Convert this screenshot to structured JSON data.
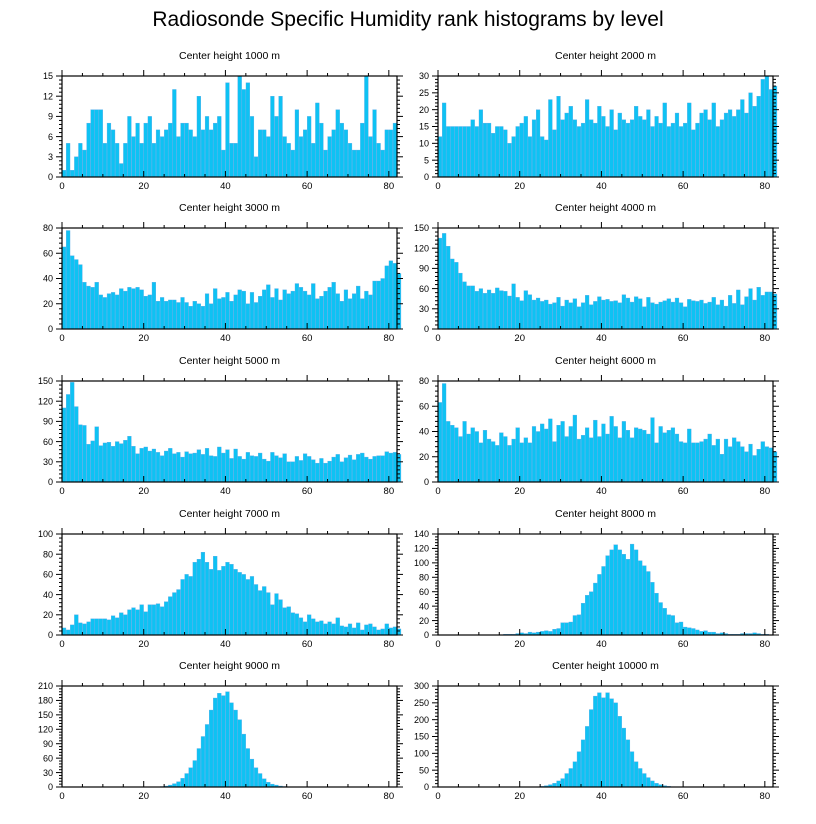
{
  "title": "Radiosonde Specific Humidity rank histograms by level",
  "colors": {
    "bar": "#0ec2f3",
    "bar_edge": "#5aa6e6",
    "axis": "#000000"
  },
  "chart_data": [
    {
      "type": "bar",
      "title": "Center height 1000 m",
      "xlim": [
        0,
        82
      ],
      "ylim": [
        0,
        15
      ],
      "xticks": [
        0,
        20,
        40,
        60,
        80
      ],
      "yticks": [
        0,
        3,
        6,
        9,
        12,
        15
      ],
      "values": [
        1,
        5,
        1,
        3,
        5,
        4,
        8,
        10,
        10,
        10,
        5,
        8,
        7,
        5,
        2,
        5,
        9,
        6,
        8,
        5,
        8,
        9,
        5,
        7,
        6,
        7,
        8,
        13,
        6,
        8,
        8,
        7,
        6,
        12,
        7,
        9,
        7,
        8,
        9,
        4,
        14,
        5,
        5,
        15,
        13,
        14,
        9,
        3,
        7,
        7,
        6,
        12,
        9,
        12,
        6,
        5,
        4,
        10,
        6,
        7,
        9,
        5,
        11,
        8,
        4,
        6,
        7,
        10,
        8,
        7,
        5,
        4,
        4,
        8,
        15,
        6,
        10,
        5,
        4,
        7,
        7,
        8
      ]
    },
    {
      "type": "bar",
      "title": "Center height 2000 m",
      "xlim": [
        0,
        82
      ],
      "ylim": [
        0,
        30
      ],
      "xticks": [
        0,
        20,
        40,
        60,
        80
      ],
      "yticks": [
        0,
        5,
        10,
        15,
        20,
        25,
        30
      ],
      "values": [
        12,
        22,
        15,
        15,
        15,
        15,
        15,
        15,
        17,
        15,
        20,
        16,
        16,
        13,
        15,
        15,
        14,
        10,
        12,
        15,
        16,
        18,
        12,
        17,
        20,
        12,
        11,
        23,
        14,
        24,
        17,
        19,
        21,
        17,
        15,
        16,
        23,
        17,
        16,
        21,
        18,
        15,
        20,
        14,
        19,
        17,
        16,
        17,
        21,
        18,
        17,
        20,
        15,
        18,
        16,
        22,
        15,
        16,
        19,
        15,
        16,
        22,
        14,
        16,
        19,
        20,
        17,
        22,
        15,
        17,
        19,
        20,
        18,
        20,
        23,
        19,
        25,
        21,
        24,
        29,
        30,
        26,
        27
      ]
    },
    {
      "type": "bar",
      "title": "Center height 3000 m",
      "xlim": [
        0,
        82
      ],
      "ylim": [
        0,
        80
      ],
      "xticks": [
        0,
        20,
        40,
        60,
        80
      ],
      "yticks": [
        0,
        20,
        40,
        60,
        80
      ],
      "values": [
        65,
        78,
        58,
        55,
        51,
        37,
        34,
        33,
        37,
        27,
        25,
        28,
        29,
        27,
        32,
        30,
        33,
        32,
        33,
        31,
        26,
        27,
        37,
        22,
        25,
        22,
        23,
        23,
        21,
        25,
        21,
        18,
        22,
        20,
        18,
        28,
        20,
        32,
        24,
        25,
        29,
        22,
        27,
        31,
        30,
        20,
        29,
        21,
        26,
        31,
        35,
        25,
        32,
        23,
        31,
        28,
        30,
        36,
        33,
        30,
        27,
        36,
        24,
        26,
        30,
        33,
        37,
        28,
        22,
        31,
        24,
        28,
        34,
        24,
        30,
        27,
        38,
        38,
        40,
        50,
        54,
        52,
        44
      ]
    },
    {
      "type": "bar",
      "title": "Center height 4000 m",
      "xlim": [
        0,
        82
      ],
      "ylim": [
        0,
        150
      ],
      "xticks": [
        0,
        20,
        40,
        60,
        80
      ],
      "yticks": [
        0,
        30,
        60,
        90,
        120,
        150
      ],
      "values": [
        135,
        142,
        123,
        104,
        99,
        83,
        70,
        64,
        64,
        56,
        60,
        53,
        58,
        53,
        61,
        57,
        56,
        49,
        67,
        47,
        42,
        57,
        51,
        43,
        46,
        41,
        43,
        37,
        39,
        47,
        34,
        43,
        39,
        45,
        33,
        39,
        50,
        36,
        41,
        48,
        43,
        44,
        41,
        42,
        39,
        51,
        46,
        40,
        48,
        45,
        33,
        47,
        39,
        37,
        40,
        42,
        45,
        40,
        46,
        39,
        33,
        44,
        42,
        41,
        43,
        38,
        40,
        47,
        36,
        43,
        34,
        50,
        38,
        58,
        36,
        48,
        60,
        43,
        62,
        50,
        55,
        55,
        52
      ]
    },
    {
      "type": "bar",
      "title": "Center height 5000 m",
      "xlim": [
        0,
        82
      ],
      "ylim": [
        0,
        150
      ],
      "xticks": [
        0,
        20,
        40,
        60,
        80
      ],
      "yticks": [
        0,
        30,
        60,
        90,
        120,
        150
      ],
      "values": [
        110,
        130,
        148,
        112,
        85,
        84,
        56,
        61,
        82,
        54,
        58,
        59,
        53,
        60,
        57,
        62,
        68,
        53,
        42,
        50,
        52,
        46,
        49,
        44,
        39,
        46,
        50,
        42,
        44,
        37,
        45,
        42,
        43,
        48,
        41,
        50,
        39,
        38,
        52,
        43,
        48,
        35,
        49,
        38,
        34,
        44,
        39,
        38,
        43,
        34,
        31,
        44,
        39,
        36,
        42,
        30,
        30,
        38,
        32,
        42,
        38,
        33,
        28,
        35,
        28,
        31,
        37,
        41,
        30,
        36,
        40,
        33,
        41,
        43,
        37,
        34,
        38,
        39,
        39,
        45,
        43,
        44,
        41
      ]
    },
    {
      "type": "bar",
      "title": "Center height 6000 m",
      "xlim": [
        0,
        82
      ],
      "ylim": [
        0,
        80
      ],
      "xticks": [
        0,
        20,
        40,
        60,
        80
      ],
      "yticks": [
        0,
        20,
        40,
        60,
        80
      ],
      "values": [
        63,
        78,
        48,
        45,
        43,
        36,
        48,
        38,
        43,
        40,
        31,
        41,
        34,
        32,
        29,
        39,
        36,
        29,
        34,
        43,
        31,
        35,
        31,
        44,
        40,
        46,
        42,
        50,
        32,
        45,
        48,
        36,
        44,
        53,
        34,
        37,
        43,
        35,
        49,
        36,
        46,
        38,
        52,
        44,
        35,
        48,
        41,
        35,
        43,
        42,
        41,
        38,
        51,
        31,
        44,
        39,
        41,
        43,
        38,
        32,
        31,
        42,
        31,
        31,
        32,
        34,
        38,
        29,
        34,
        22,
        34,
        28,
        35,
        32,
        28,
        24,
        30,
        21,
        26,
        32,
        28,
        27,
        24
      ]
    },
    {
      "type": "bar",
      "title": "Center height 7000 m",
      "xlim": [
        0,
        82
      ],
      "ylim": [
        0,
        100
      ],
      "xticks": [
        0,
        20,
        40,
        60,
        80
      ],
      "yticks": [
        0,
        20,
        40,
        60,
        80,
        100
      ],
      "values": [
        7,
        5,
        10,
        20,
        12,
        11,
        13,
        16,
        16,
        16,
        16,
        15,
        19,
        17,
        22,
        20,
        25,
        27,
        25,
        30,
        23,
        30,
        30,
        31,
        28,
        33,
        38,
        42,
        45,
        55,
        60,
        58,
        72,
        75,
        82,
        72,
        65,
        78,
        64,
        68,
        72,
        70,
        65,
        62,
        60,
        55,
        58,
        50,
        44,
        48,
        42,
        30,
        41,
        35,
        27,
        28,
        22,
        21,
        17,
        13,
        20,
        16,
        13,
        14,
        11,
        13,
        11,
        17,
        9,
        8,
        11,
        7,
        12,
        5,
        10,
        11,
        8,
        5,
        6,
        11,
        7,
        8,
        6
      ]
    },
    {
      "type": "bar",
      "title": "Center height 8000 m",
      "xlim": [
        0,
        82
      ],
      "ylim": [
        0,
        140
      ],
      "xticks": [
        0,
        20,
        40,
        60,
        80
      ],
      "yticks": [
        0,
        20,
        40,
        60,
        80,
        100,
        120,
        140
      ],
      "values": [
        0,
        0,
        0,
        0,
        0,
        0,
        0,
        0,
        0,
        0,
        0,
        0,
        0,
        0,
        0,
        0,
        1,
        1,
        1,
        2,
        3,
        2,
        4,
        3,
        4,
        5,
        6,
        5,
        8,
        9,
        17,
        17,
        18,
        27,
        28,
        44,
        55,
        60,
        72,
        84,
        95,
        110,
        118,
        125,
        118,
        112,
        105,
        126,
        118,
        103,
        96,
        88,
        73,
        58,
        45,
        37,
        28,
        27,
        17,
        18,
        11,
        10,
        9,
        7,
        5,
        6,
        4,
        4,
        2,
        3,
        2,
        1,
        1,
        1,
        2,
        2,
        2,
        3,
        2,
        1,
        1,
        0,
        0
      ]
    },
    {
      "type": "bar",
      "title": "Center height 9000 m",
      "xlim": [
        0,
        82
      ],
      "ylim": [
        0,
        210
      ],
      "xticks": [
        0,
        20,
        40,
        60,
        80
      ],
      "yticks": [
        0,
        30,
        60,
        90,
        120,
        150,
        180,
        210
      ],
      "values": [
        0,
        0,
        0,
        0,
        0,
        0,
        0,
        0,
        0,
        0,
        0,
        0,
        0,
        0,
        0,
        0,
        0,
        0,
        0,
        0,
        0,
        0,
        0,
        0,
        1,
        2,
        4,
        7,
        11,
        18,
        28,
        40,
        55,
        80,
        105,
        130,
        160,
        185,
        195,
        190,
        198,
        175,
        160,
        140,
        110,
        80,
        58,
        40,
        28,
        17,
        10,
        6,
        4,
        2,
        1,
        0,
        0,
        0,
        0,
        0,
        0,
        0,
        0,
        0,
        0,
        0,
        0,
        0,
        0,
        0,
        0,
        0,
        0,
        0,
        0,
        0,
        0,
        0,
        0,
        0,
        0,
        0,
        0
      ]
    },
    {
      "type": "bar",
      "title": "Center height 10000 m",
      "xlim": [
        0,
        82
      ],
      "ylim": [
        0,
        300
      ],
      "xticks": [
        0,
        20,
        40,
        60,
        80
      ],
      "yticks": [
        0,
        50,
        100,
        150,
        200,
        250,
        300
      ],
      "values": [
        0,
        0,
        0,
        0,
        0,
        0,
        0,
        0,
        0,
        0,
        0,
        0,
        0,
        0,
        0,
        0,
        0,
        0,
        0,
        0,
        0,
        0,
        0,
        0,
        1,
        2,
        4,
        7,
        11,
        18,
        25,
        40,
        55,
        75,
        105,
        140,
        180,
        230,
        270,
        280,
        265,
        280,
        262,
        250,
        210,
        175,
        140,
        105,
        75,
        55,
        40,
        28,
        18,
        11,
        7,
        4,
        2,
        1,
        0,
        0,
        0,
        0,
        0,
        0,
        0,
        0,
        0,
        0,
        0,
        0,
        0,
        0,
        0,
        0,
        0,
        0,
        0,
        0,
        0,
        0,
        0,
        0,
        0
      ]
    }
  ]
}
